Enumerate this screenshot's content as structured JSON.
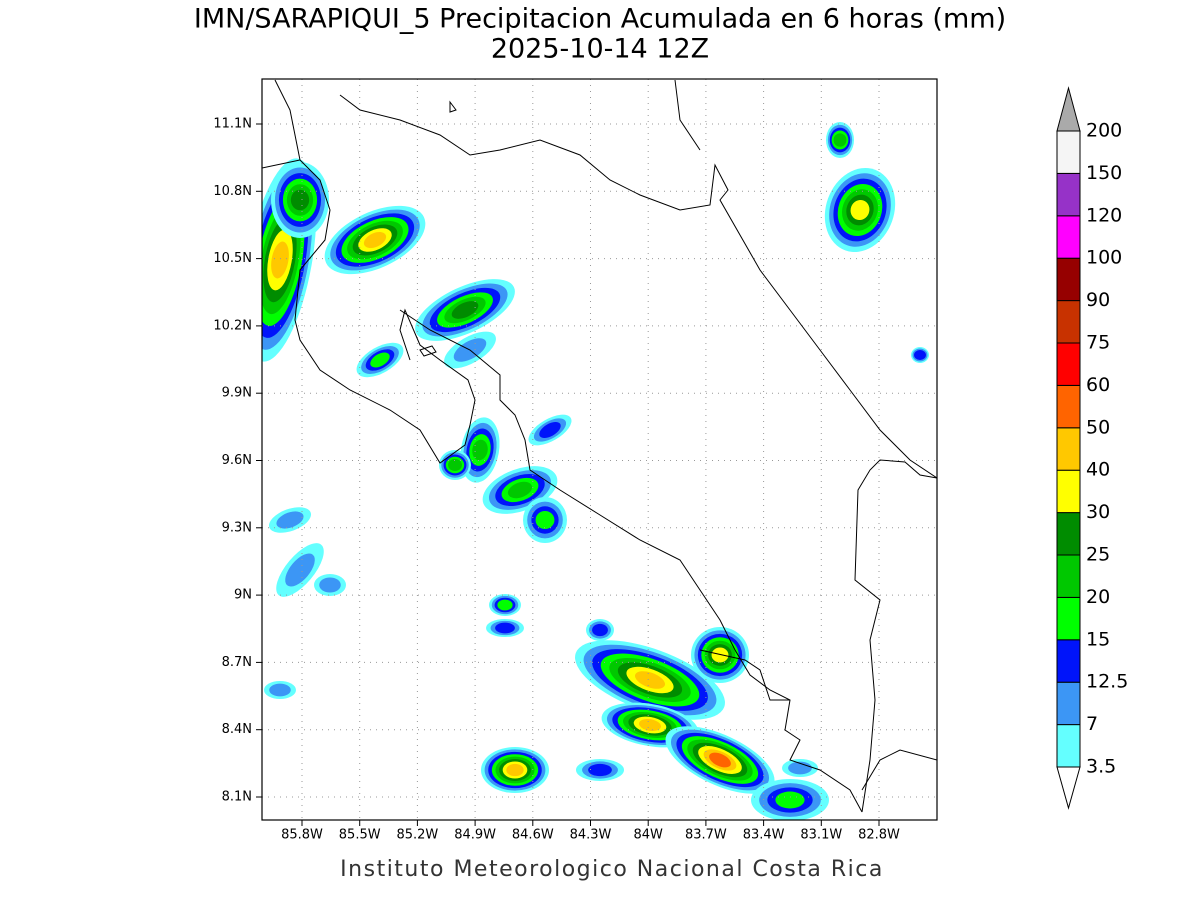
{
  "header": {
    "title": "IMN/SARAPIQUI_5 Precipitacion Acumulada en 6 horas (mm)",
    "subtitle": "2025-10-14 12Z"
  },
  "map": {
    "lat_labels": [
      "11.1N",
      "10.8N",
      "10.5N",
      "10.2N",
      "9.9N",
      "9.6N",
      "9.3N",
      "9N",
      "8.7N",
      "8.4N",
      "8.1N"
    ],
    "lon_labels": [
      "85.8W",
      "85.5W",
      "85.2W",
      "84.9W",
      "84.6W",
      "84.3W",
      "84W",
      "83.7W",
      "83.4W",
      "83.1W",
      "82.8W"
    ]
  },
  "colorbar": {
    "labels": [
      "3.5",
      "7",
      "12.5",
      "15",
      "20",
      "25",
      "30",
      "40",
      "50",
      "60",
      "75",
      "90",
      "100",
      "120",
      "150",
      "200"
    ],
    "colors": [
      "#64ffff",
      "#3c96f5",
      "#0014fa",
      "#00ff00",
      "#00c800",
      "#008c00",
      "#ffff00",
      "#ffc800",
      "#ff6400",
      "#ff0000",
      "#c83200",
      "#960000",
      "#ff00ff",
      "#9632c8",
      "#f5f5f5"
    ],
    "over_color": "#aaaaaa",
    "under_color": "#ffffff"
  },
  "footer": "Instituto Meteorologico Nacional Costa Rica"
}
